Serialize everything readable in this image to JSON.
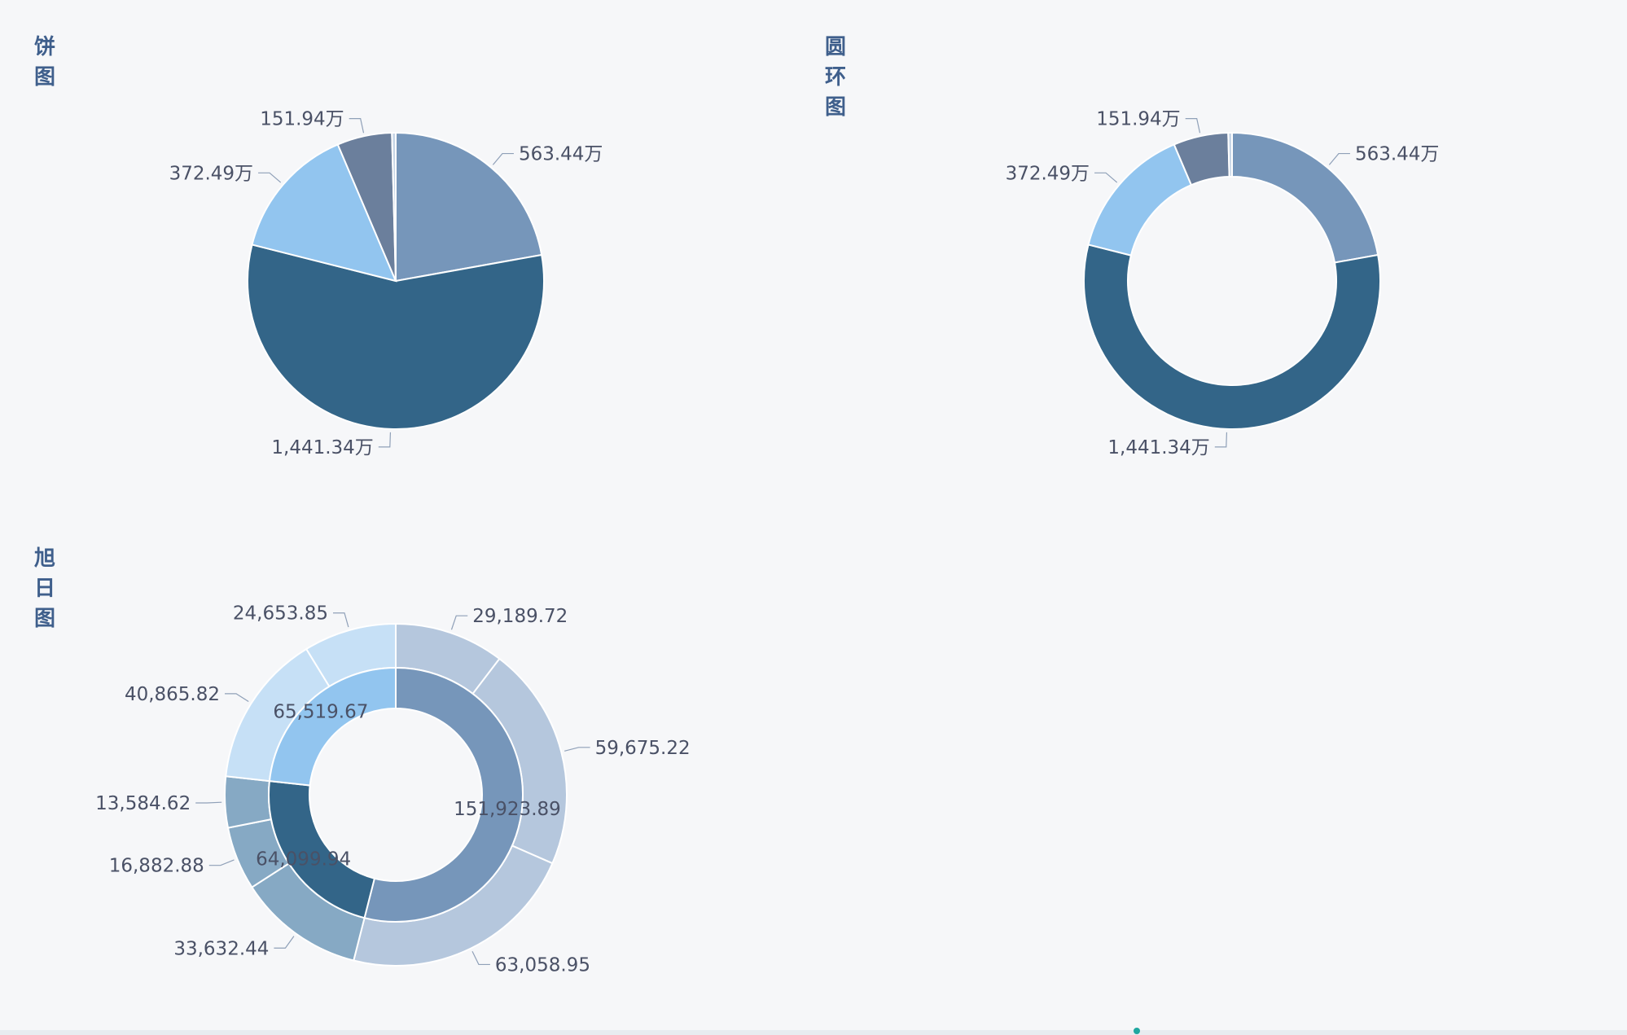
{
  "colors": {
    "title": "#3f5f8c",
    "label": "#4a5166",
    "leader": "#8fa0b8",
    "background": "#f6f7f9"
  },
  "chart_data": [
    {
      "type": "pie",
      "title": "饼图",
      "slices": [
        {
          "value": 563.44,
          "label": "563.44万",
          "color": "#7696ba"
        },
        {
          "value": 1441.34,
          "label": "1,441.34万",
          "color": "#336588"
        },
        {
          "value": 372.49,
          "label": "372.49万",
          "color": "#92c5ef"
        },
        {
          "value": 151.94,
          "label": "151.94万",
          "color": "#6b7f9c"
        },
        {
          "value": 10.5,
          "label": "",
          "color": "#c6d5e6"
        }
      ]
    },
    {
      "type": "pie",
      "title": "圆环图",
      "subtype": "donut",
      "slices": [
        {
          "value": 563.44,
          "label": "563.44万",
          "color": "#7696ba"
        },
        {
          "value": 1441.34,
          "label": "1,441.34万",
          "color": "#336588"
        },
        {
          "value": 372.49,
          "label": "372.49万",
          "color": "#92c5ef"
        },
        {
          "value": 151.94,
          "label": "151.94万",
          "color": "#6b7f9c"
        },
        {
          "value": 10.5,
          "label": "",
          "color": "#c6d5e6"
        }
      ]
    },
    {
      "type": "sunburst",
      "title": "旭日图",
      "inner": [
        {
          "value": 151923.89,
          "label": "151,923.89",
          "color": "#7696ba"
        },
        {
          "value": 64099.94,
          "label": "64,099.94",
          "color": "#336588"
        },
        {
          "value": 65519.67,
          "label": "65,519.67",
          "color": "#92c5ef"
        }
      ],
      "outer": [
        {
          "value": 29189.72,
          "label": "29,189.72",
          "color": "#b5c7dd"
        },
        {
          "value": 59675.22,
          "label": "59,675.22",
          "color": "#b5c7dd"
        },
        {
          "value": 63058.95,
          "label": "63,058.95",
          "color": "#b5c7dd"
        },
        {
          "value": 33632.44,
          "label": "33,632.44",
          "color": "#86a9c4"
        },
        {
          "value": 16882.88,
          "label": "16,882.88",
          "color": "#86a9c4"
        },
        {
          "value": 13584.62,
          "label": "13,584.62",
          "color": "#86a9c4"
        },
        {
          "value": 40865.82,
          "label": "40,865.82",
          "color": "#c6e0f6"
        },
        {
          "value": 24653.85,
          "label": "24,653.85",
          "color": "#c6e0f6"
        }
      ]
    }
  ]
}
